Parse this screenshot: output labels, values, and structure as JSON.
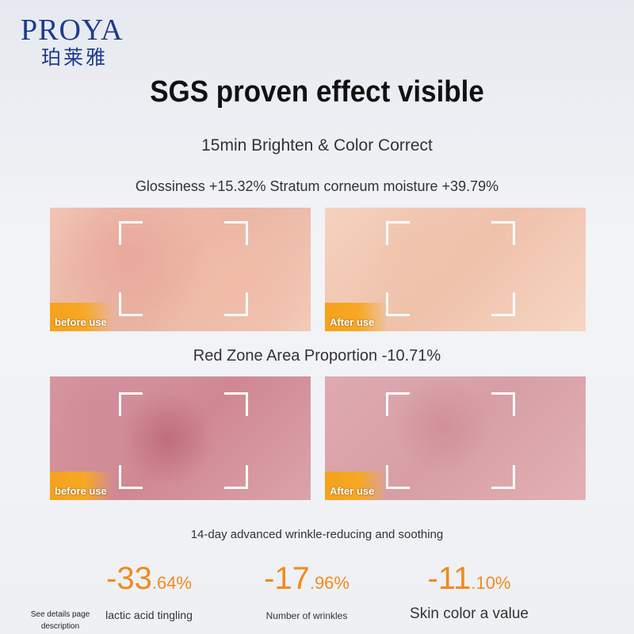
{
  "brand": {
    "name": "PROYA",
    "name_cn": "珀莱雅",
    "color": "#1d3b8c"
  },
  "title": "SGS proven effect visible",
  "section1": {
    "heading": "15min Brighten & Color Correct",
    "metrics": "Glossiness +15.32% Stratum corneum moisture +39.79%",
    "before_label": "before use",
    "after_label": "After use"
  },
  "section2": {
    "heading": "Red Zone Area Proportion -10.71%",
    "before_label": "before use",
    "after_label": "After use"
  },
  "section3": {
    "heading": "14-day advanced wrinkle-reducing and soothing",
    "stats": [
      {
        "int": "-33",
        "dec": ".64%",
        "label": "lactic acid tingling"
      },
      {
        "int": "-17",
        "dec": ".96%",
        "label": "Number of wrinkles"
      },
      {
        "int": "-11",
        "dec": ".10%",
        "label": "Skin color a value"
      }
    ],
    "note": "See details page description"
  },
  "accent": "#f08a1f"
}
